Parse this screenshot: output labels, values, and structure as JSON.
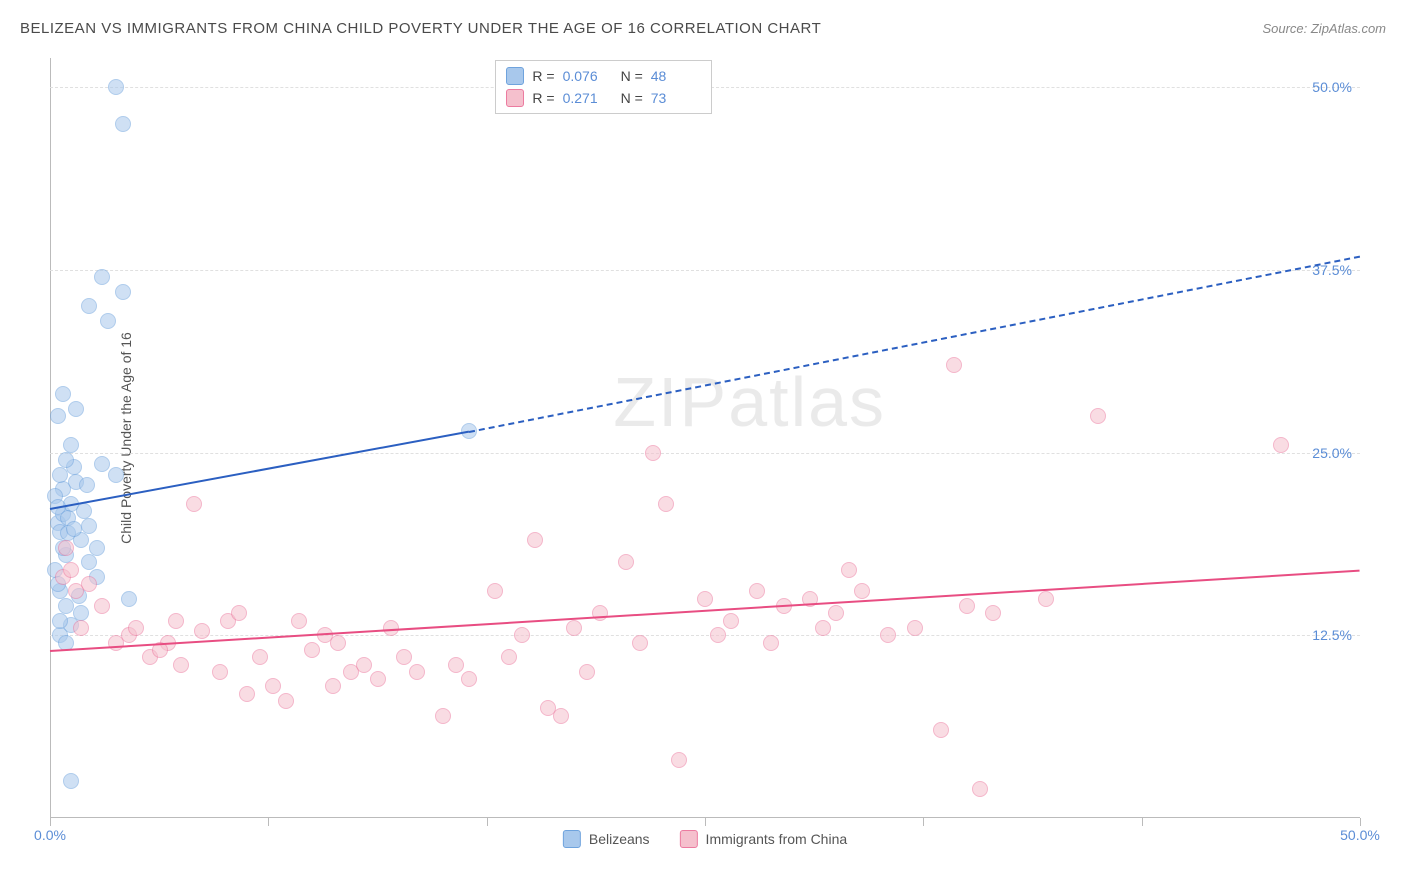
{
  "title": "BELIZEAN VS IMMIGRANTS FROM CHINA CHILD POVERTY UNDER THE AGE OF 16 CORRELATION CHART",
  "source": "Source: ZipAtlas.com",
  "watermark": "ZIPatlas",
  "y_axis_label": "Child Poverty Under the Age of 16",
  "chart": {
    "type": "scatter",
    "xlim": [
      0,
      50
    ],
    "ylim": [
      0,
      52
    ],
    "x_ticks": [
      0,
      8.33,
      16.67,
      25,
      33.33,
      41.67,
      50
    ],
    "x_tick_labels_shown": {
      "0": "0.0%",
      "50": "50.0%"
    },
    "y_gridlines": [
      12.5,
      25,
      37.5,
      50
    ],
    "y_tick_labels": {
      "12.5": "12.5%",
      "25": "25.0%",
      "37.5": "37.5%",
      "50": "50.0%"
    },
    "background_color": "#ffffff",
    "grid_color": "#e0e0e0",
    "axis_color": "#bbbbbb",
    "label_color": "#5b8dd6",
    "point_radius": 8,
    "point_opacity": 0.55
  },
  "series": {
    "a": {
      "name": "Belizeans",
      "fill": "#a8c8ec",
      "stroke": "#6fa3dd",
      "trend_color": "#2b5fc1",
      "trend": {
        "x0": 0,
        "y0": 21.2,
        "x1_solid": 16,
        "y1_solid": 26.5,
        "x1_dash": 50,
        "y1_dash": 38.5
      },
      "R": "0.076",
      "N": "48",
      "points": [
        [
          0.3,
          20.2
        ],
        [
          0.5,
          20.8
        ],
        [
          0.4,
          19.6
        ],
        [
          0.8,
          21.5
        ],
        [
          1.2,
          19.0
        ],
        [
          0.6,
          18.0
        ],
        [
          1.5,
          20.0
        ],
        [
          0.5,
          22.5
        ],
        [
          1.0,
          23.0
        ],
        [
          2.0,
          24.2
        ],
        [
          2.5,
          23.5
        ],
        [
          0.4,
          15.5
        ],
        [
          1.8,
          16.5
        ],
        [
          3.0,
          15.0
        ],
        [
          1.2,
          14.0
        ],
        [
          0.8,
          13.2
        ],
        [
          0.3,
          27.5
        ],
        [
          1.0,
          28.0
        ],
        [
          0.5,
          29.0
        ],
        [
          2.0,
          37.0
        ],
        [
          2.8,
          36.0
        ],
        [
          1.5,
          35.0
        ],
        [
          2.2,
          34.0
        ],
        [
          2.5,
          50.0
        ],
        [
          2.8,
          47.5
        ],
        [
          0.4,
          12.5
        ],
        [
          0.6,
          12.0
        ],
        [
          1.5,
          17.5
        ],
        [
          0.8,
          25.5
        ],
        [
          1.3,
          21.0
        ],
        [
          0.7,
          19.5
        ],
        [
          0.2,
          17.0
        ],
        [
          0.9,
          24.0
        ],
        [
          0.3,
          16.0
        ],
        [
          1.1,
          15.2
        ],
        [
          0.6,
          14.5
        ],
        [
          0.4,
          13.5
        ],
        [
          0.2,
          22.0
        ],
        [
          0.5,
          18.5
        ],
        [
          0.3,
          21.3
        ],
        [
          0.7,
          20.5
        ],
        [
          0.9,
          19.8
        ],
        [
          0.4,
          23.5
        ],
        [
          0.6,
          24.5
        ],
        [
          1.4,
          22.8
        ],
        [
          0.8,
          2.5
        ],
        [
          16.0,
          26.5
        ],
        [
          1.8,
          18.5
        ]
      ]
    },
    "b": {
      "name": "Immigrants from China",
      "fill": "#f5c0cd",
      "stroke": "#ec7ba0",
      "trend_color": "#e84d82",
      "trend": {
        "x0": 0,
        "y0": 11.5,
        "x1_solid": 50,
        "y1_solid": 17.0
      },
      "R": "0.271",
      "N": "73",
      "points": [
        [
          0.5,
          16.5
        ],
        [
          1.0,
          15.5
        ],
        [
          0.8,
          17.0
        ],
        [
          1.5,
          16.0
        ],
        [
          0.6,
          18.5
        ],
        [
          2.5,
          12.0
        ],
        [
          3.0,
          12.5
        ],
        [
          4.5,
          12.0
        ],
        [
          5.5,
          21.5
        ],
        [
          3.8,
          11.0
        ],
        [
          4.2,
          11.5
        ],
        [
          5.0,
          10.5
        ],
        [
          6.5,
          10.0
        ],
        [
          7.5,
          8.5
        ],
        [
          8.0,
          11.0
        ],
        [
          8.5,
          9.0
        ],
        [
          9.0,
          8.0
        ],
        [
          10.0,
          11.5
        ],
        [
          10.5,
          12.5
        ],
        [
          11.0,
          12.0
        ],
        [
          11.5,
          10.0
        ],
        [
          12.0,
          10.5
        ],
        [
          13.0,
          13.0
        ],
        [
          12.5,
          9.5
        ],
        [
          14.0,
          10.0
        ],
        [
          15.0,
          7.0
        ],
        [
          15.5,
          10.5
        ],
        [
          16.0,
          9.5
        ],
        [
          17.0,
          15.5
        ],
        [
          18.0,
          12.5
        ],
        [
          18.5,
          19.0
        ],
        [
          19.0,
          7.5
        ],
        [
          19.5,
          7.0
        ],
        [
          20.0,
          13.0
        ],
        [
          20.5,
          10.0
        ],
        [
          21.0,
          14.0
        ],
        [
          22.0,
          17.5
        ],
        [
          22.5,
          12.0
        ],
        [
          23.0,
          25.0
        ],
        [
          23.5,
          21.5
        ],
        [
          24.0,
          4.0
        ],
        [
          25.0,
          15.0
        ],
        [
          25.5,
          12.5
        ],
        [
          26.0,
          13.5
        ],
        [
          27.0,
          15.5
        ],
        [
          27.5,
          12.0
        ],
        [
          28.0,
          14.5
        ],
        [
          29.0,
          15.0
        ],
        [
          29.5,
          13.0
        ],
        [
          30.0,
          14.0
        ],
        [
          31.0,
          15.5
        ],
        [
          32.0,
          12.5
        ],
        [
          33.0,
          13.0
        ],
        [
          34.0,
          6.0
        ],
        [
          35.0,
          14.5
        ],
        [
          35.5,
          2.0
        ],
        [
          36.0,
          14.0
        ],
        [
          34.5,
          31.0
        ],
        [
          38.0,
          15.0
        ],
        [
          40.0,
          27.5
        ],
        [
          30.5,
          17.0
        ],
        [
          5.8,
          12.8
        ],
        [
          6.8,
          13.5
        ],
        [
          7.2,
          14.0
        ],
        [
          9.5,
          13.5
        ],
        [
          10.8,
          9.0
        ],
        [
          13.5,
          11.0
        ],
        [
          17.5,
          11.0
        ],
        [
          4.8,
          13.5
        ],
        [
          3.3,
          13.0
        ],
        [
          2.0,
          14.5
        ],
        [
          1.2,
          13.0
        ],
        [
          47.0,
          25.5
        ]
      ]
    }
  },
  "legend_top": {
    "rows": [
      {
        "swatch_fill": "#a8c8ec",
        "swatch_stroke": "#6fa3dd",
        "r_label": "R =",
        "r_val": "0.076",
        "n_label": "N =",
        "n_val": "48"
      },
      {
        "swatch_fill": "#f5c0cd",
        "swatch_stroke": "#ec7ba0",
        "r_label": "R =",
        "r_val": "0.271",
        "n_label": "N =",
        "n_val": "73"
      }
    ]
  },
  "legend_bottom": [
    {
      "swatch_fill": "#a8c8ec",
      "swatch_stroke": "#6fa3dd",
      "label": "Belizeans"
    },
    {
      "swatch_fill": "#f5c0cd",
      "swatch_stroke": "#ec7ba0",
      "label": "Immigrants from China"
    }
  ]
}
